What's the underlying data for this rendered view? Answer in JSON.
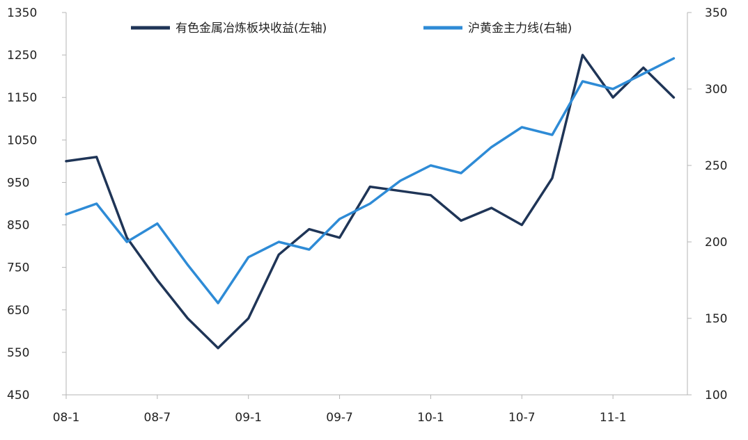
{
  "chart_data": {
    "type": "line",
    "title": "",
    "xlabel": "",
    "ylabel": "",
    "x_ticks": [
      "08-1",
      "08-7",
      "09-1",
      "09-7",
      "10-1",
      "10-7",
      "11-1"
    ],
    "x": [
      "08-1",
      "08-3",
      "08-5",
      "08-7",
      "08-9",
      "08-11",
      "09-1",
      "09-3",
      "09-5",
      "09-7",
      "09-9",
      "09-11",
      "10-1",
      "10-3",
      "10-5",
      "10-7",
      "10-9",
      "10-11",
      "11-1",
      "11-3",
      "11-5"
    ],
    "ylim_left": [
      450,
      1350
    ],
    "yticks_left": [
      1350,
      1250,
      1150,
      1050,
      950,
      850,
      750,
      650,
      550,
      450
    ],
    "ylim_right": [
      100,
      350
    ],
    "yticks_right": [
      350,
      300,
      250,
      200,
      150,
      100
    ],
    "grid": false,
    "legend_position": "top",
    "series": [
      {
        "name": "有色金属冶炼板块收益(左轴)",
        "axis": "left",
        "color": "#1f3557",
        "values": [
          1000,
          1010,
          820,
          720,
          630,
          560,
          630,
          780,
          840,
          820,
          940,
          930,
          920,
          860,
          890,
          850,
          960,
          1250,
          1150,
          1220,
          1150
        ]
      },
      {
        "name": "沪黄金主力线(右轴)",
        "axis": "right",
        "color": "#2e8bd6",
        "values": [
          218,
          225,
          200,
          212,
          185,
          160,
          190,
          200,
          195,
          215,
          225,
          240,
          250,
          245,
          262,
          275,
          270,
          305,
          300,
          310,
          320
        ]
      }
    ]
  }
}
